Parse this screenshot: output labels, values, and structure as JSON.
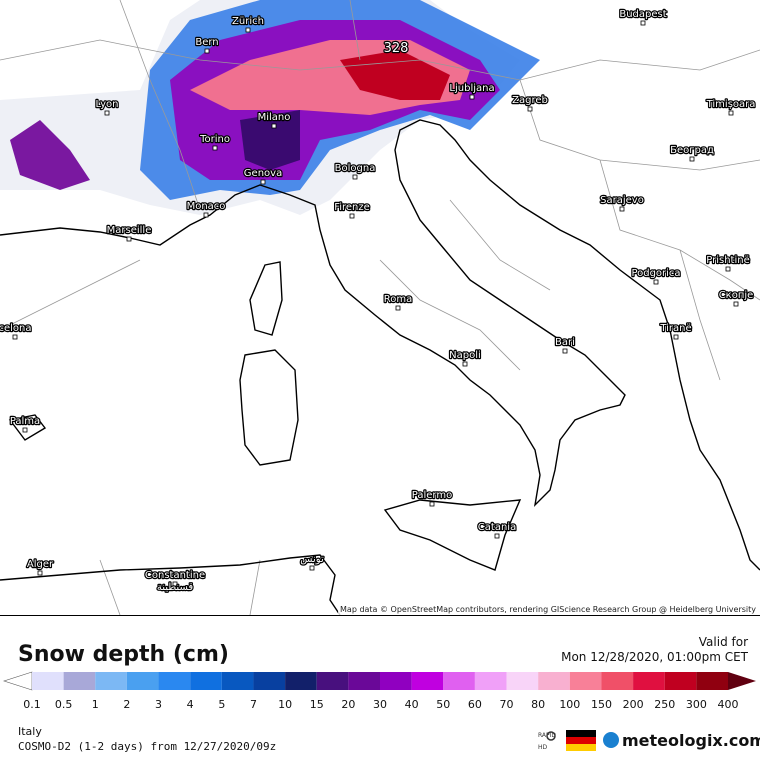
{
  "map": {
    "labels": [
      "Zürich",
      "Bern",
      "Budapest",
      "Lyon",
      "Ljubljana",
      "Zagreb",
      "Timișoara",
      "Milano",
      "Torino",
      "Београд",
      "Genova",
      "Bologna",
      "Sarajevo",
      "Monaco",
      "Firenze",
      "Marseille",
      "Roma",
      "Podgorica",
      "Prishtinë",
      "Скопје",
      "Tiranë",
      "Napoli",
      "Bari",
      "celona",
      "Palma",
      "Palermo",
      "Catania",
      "Alger",
      "Constantine",
      "قسنطينة",
      "تونس"
    ],
    "max_value": 328,
    "attribution": "Map data © OpenStreetMap contributors, rendering GIScience Research Group @ Heidelberg University"
  },
  "legend": {
    "title": "Snow depth (cm)",
    "valid_label": "Valid for",
    "valid_time": "Mon 12/28/2020, 01:00pm CET",
    "values": [
      0.1,
      0.5,
      1,
      2,
      3,
      4,
      5,
      7,
      10,
      15,
      20,
      30,
      40,
      50,
      60,
      70,
      80,
      100,
      150,
      200,
      250,
      300,
      400
    ],
    "colors": [
      "#ffffff",
      "#e0e0fc",
      "#a8a8d8",
      "#7cb8f4",
      "#4aa0f0",
      "#2a88f0",
      "#1070e0",
      "#0858c0",
      "#0840a0",
      "#12206a",
      "#48107e",
      "#6a0898",
      "#9000c0",
      "#c000e0",
      "#e060f0",
      "#f0a0f8",
      "#f8d4f8",
      "#f8b0d0",
      "#f88098",
      "#f05068",
      "#e01040",
      "#c00020",
      "#900010",
      "#600010"
    ]
  },
  "footer": {
    "region": "Italy",
    "model": "COSMO-D2 (1-2 days) from 12/27/2020/09z",
    "badge_top": "RAPID",
    "badge_bottom": "HD",
    "brand": "meteologix.com"
  }
}
